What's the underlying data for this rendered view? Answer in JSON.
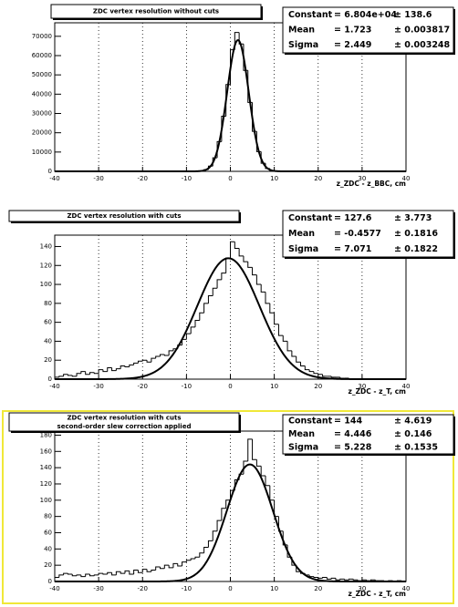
{
  "chart_data": [
    {
      "type": "histogram",
      "title": "ZDC vertex resolution without cuts",
      "x_label": "z_ZDC - z_BBC, cm",
      "bins": [
        -40,
        -39,
        -38,
        -37,
        -36,
        -35,
        -34,
        -33,
        -32,
        -31,
        -30,
        -29,
        -28,
        -27,
        -26,
        -25,
        -24,
        -23,
        -22,
        -21,
        -20,
        -19,
        -18,
        -17,
        -16,
        -15,
        -14,
        -13,
        -12,
        -11,
        -10,
        -9,
        -8,
        -7,
        -6,
        -5,
        -4,
        -3,
        -2,
        -1,
        0,
        1,
        2,
        3,
        4,
        5,
        6,
        7,
        8,
        9,
        10,
        11,
        12,
        13,
        14,
        15,
        16,
        17,
        18,
        19,
        20,
        21,
        22,
        23,
        24,
        25,
        26,
        27,
        28,
        29,
        30,
        31,
        32,
        33,
        34,
        35,
        36,
        37,
        38,
        39,
        40
      ],
      "values": [
        0,
        0,
        0,
        0,
        0,
        0,
        0,
        0,
        0,
        0,
        0,
        0,
        0,
        0,
        0,
        0,
        0,
        0,
        0,
        0,
        0,
        0,
        0,
        0,
        0,
        0,
        0,
        0,
        0,
        0,
        0,
        0,
        0,
        240,
        880,
        2700,
        7000,
        15400,
        28600,
        45000,
        63000,
        72000,
        66000,
        52300,
        35700,
        20700,
        10200,
        4200,
        1480,
        440,
        110,
        0,
        0,
        0,
        0,
        0,
        0,
        0,
        0,
        0,
        0,
        0,
        0,
        0,
        0,
        0,
        0,
        0,
        0,
        0,
        0,
        0,
        0,
        0,
        0,
        0,
        0,
        0,
        0,
        0
      ],
      "color": "#000000",
      "fit": [
        {
          "name": "Constant",
          "value": 68040,
          "label": "= 6.804e+04",
          "error_label": "± 138.6"
        },
        {
          "name": "Mean",
          "value": 1.723,
          "label": "= 1.723",
          "error_label": "± 0.003817"
        },
        {
          "name": "Sigma",
          "value": 2.449,
          "label": "= 2.449",
          "error_label": "± 0.003248"
        }
      ],
      "xlim": [
        -40,
        40
      ],
      "xticks": [
        -40,
        -30,
        -20,
        -10,
        0,
        10,
        20,
        30,
        40
      ],
      "ylim": [
        0,
        77000
      ],
      "yticks": [
        0,
        10000,
        20000,
        30000,
        40000,
        50000,
        60000,
        70000
      ],
      "grid": "x"
    },
    {
      "type": "histogram",
      "title": "ZDC vertex resolution with cuts",
      "x_label": "z_ZDC - z_T, cm",
      "bins": [
        -40,
        -39,
        -38,
        -37,
        -36,
        -35,
        -34,
        -33,
        -32,
        -31,
        -30,
        -29,
        -28,
        -27,
        -26,
        -25,
        -24,
        -23,
        -22,
        -21,
        -20,
        -19,
        -18,
        -17,
        -16,
        -15,
        -14,
        -13,
        -12,
        -11,
        -10,
        -9,
        -8,
        -7,
        -6,
        -5,
        -4,
        -3,
        -2,
        -1,
        0,
        1,
        2,
        3,
        4,
        5,
        6,
        7,
        8,
        9,
        10,
        11,
        12,
        13,
        14,
        15,
        16,
        17,
        18,
        19,
        20,
        21,
        22,
        23,
        24,
        25,
        26,
        27,
        28,
        29,
        30,
        31,
        32,
        33,
        34,
        35,
        36,
        37,
        38,
        39,
        40
      ],
      "values": [
        2,
        3,
        5,
        4,
        3,
        6,
        8,
        5,
        7,
        6,
        10,
        8,
        12,
        9,
        11,
        14,
        13,
        15,
        17,
        19,
        20,
        18,
        22,
        24,
        26,
        25,
        30,
        32,
        36,
        42,
        48,
        55,
        62,
        70,
        80,
        88,
        96,
        105,
        112,
        128,
        145,
        138,
        130,
        124,
        118,
        110,
        100,
        92,
        80,
        70,
        58,
        46,
        40,
        30,
        24,
        18,
        14,
        10,
        8,
        6,
        5,
        3,
        3,
        2,
        2,
        1,
        1,
        0,
        0,
        0,
        0,
        0,
        0,
        0,
        0,
        0,
        0,
        0,
        0,
        0
      ],
      "color": "#000000",
      "fit": [
        {
          "name": "Constant",
          "value": 127.6,
          "label": "= 127.6",
          "error_label": "± 3.773"
        },
        {
          "name": "Mean",
          "value": -0.4577,
          "label": "= -0.4577",
          "error_label": "± 0.1816"
        },
        {
          "name": "Sigma",
          "value": 7.071,
          "label": "= 7.071",
          "error_label": "± 0.1822"
        }
      ],
      "xlim": [
        -40,
        40
      ],
      "xticks": [
        -40,
        -30,
        -20,
        -10,
        0,
        10,
        20,
        30,
        40
      ],
      "ylim": [
        0,
        152
      ],
      "yticks": [
        0,
        20,
        40,
        60,
        80,
        100,
        120,
        140
      ],
      "grid": "x"
    },
    {
      "type": "histogram",
      "title": "ZDC vertex resolution with cuts",
      "subtitle": "second-order slew correction applied",
      "x_label": "z_ZDC - z_T, cm",
      "bins": [
        -40,
        -39,
        -38,
        -37,
        -36,
        -35,
        -34,
        -33,
        -32,
        -31,
        -30,
        -29,
        -28,
        -27,
        -26,
        -25,
        -24,
        -23,
        -22,
        -21,
        -20,
        -19,
        -18,
        -17,
        -16,
        -15,
        -14,
        -13,
        -12,
        -11,
        -10,
        -9,
        -8,
        -7,
        -6,
        -5,
        -4,
        -3,
        -2,
        -1,
        0,
        1,
        2,
        3,
        4,
        5,
        6,
        7,
        8,
        9,
        10,
        11,
        12,
        13,
        14,
        15,
        16,
        17,
        18,
        19,
        20,
        21,
        22,
        23,
        24,
        25,
        26,
        27,
        28,
        29,
        30,
        31,
        32,
        33,
        34,
        35,
        36,
        37,
        38,
        39,
        40
      ],
      "values": [
        5,
        8,
        10,
        9,
        7,
        8,
        6,
        9,
        7,
        8,
        10,
        9,
        11,
        8,
        12,
        10,
        13,
        9,
        14,
        11,
        15,
        12,
        14,
        18,
        16,
        20,
        17,
        22,
        19,
        24,
        26,
        28,
        30,
        35,
        42,
        50,
        62,
        75,
        90,
        100,
        112,
        125,
        132,
        148,
        175,
        150,
        142,
        130,
        118,
        100,
        80,
        62,
        45,
        30,
        20,
        12,
        10,
        8,
        6,
        5,
        4,
        5,
        3,
        4,
        2,
        3,
        2,
        3,
        2,
        1,
        2,
        1,
        2,
        1,
        1,
        0,
        1,
        0,
        1,
        0
      ],
      "color": "#000000",
      "fit": [
        {
          "name": "Constant",
          "value": 144,
          "label": "=  144",
          "error_label": "± 4.619"
        },
        {
          "name": "Mean",
          "value": 4.446,
          "label": "= 4.446",
          "error_label": "± 0.146"
        },
        {
          "name": "Sigma",
          "value": 5.228,
          "label": "= 5.228",
          "error_label": "± 0.1535"
        }
      ],
      "xlim": [
        -40,
        40
      ],
      "xticks": [
        -40,
        -30,
        -20,
        -10,
        0,
        10,
        20,
        30,
        40
      ],
      "ylim": [
        0,
        185
      ],
      "yticks": [
        0,
        20,
        40,
        60,
        80,
        100,
        120,
        140,
        160,
        180
      ],
      "grid": "x"
    }
  ]
}
